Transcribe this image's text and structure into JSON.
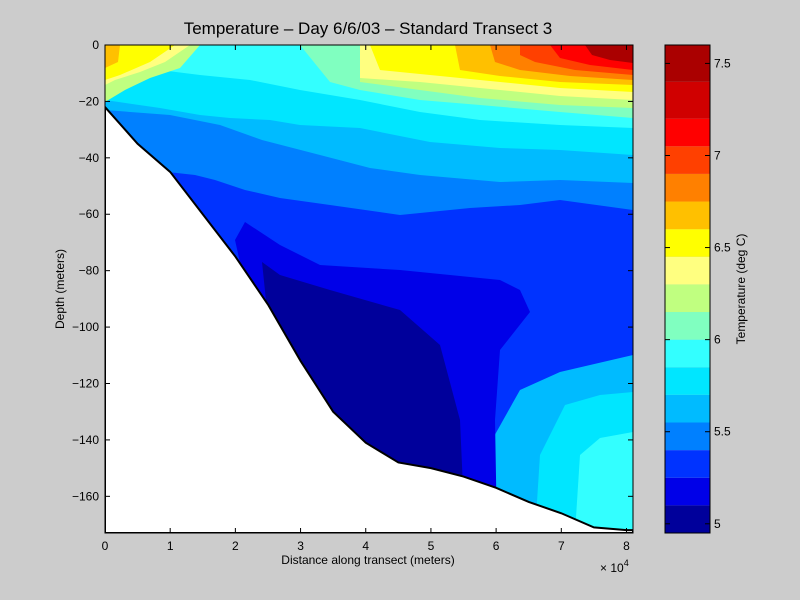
{
  "chart_data": {
    "type": "heatmap",
    "title": "Temperature – Day 6/6/03 – Standard Transect 3",
    "xlabel": "Distance along transect (meters)",
    "ylabel": "Depth (meters)",
    "x_multiplier_label": "× 10",
    "x_multiplier_exponent": "4",
    "xlim": [
      0,
      81000
    ],
    "ylim": [
      -173,
      0
    ],
    "x_ticks": [
      {
        "value": 0,
        "label": "0"
      },
      {
        "value": 10000,
        "label": "1"
      },
      {
        "value": 20000,
        "label": "2"
      },
      {
        "value": 30000,
        "label": "3"
      },
      {
        "value": 40000,
        "label": "4"
      },
      {
        "value": 50000,
        "label": "5"
      },
      {
        "value": 60000,
        "label": "6"
      },
      {
        "value": 70000,
        "label": "7"
      },
      {
        "value": 80000,
        "label": "8"
      }
    ],
    "y_ticks": [
      {
        "value": 0,
        "label": "0"
      },
      {
        "value": -20,
        "label": "−20"
      },
      {
        "value": -40,
        "label": "−40"
      },
      {
        "value": -60,
        "label": "−60"
      },
      {
        "value": -80,
        "label": "−80"
      },
      {
        "value": -100,
        "label": "−100"
      },
      {
        "value": -120,
        "label": "−120"
      },
      {
        "value": -140,
        "label": "−140"
      },
      {
        "value": -160,
        "label": "−160"
      }
    ],
    "colorbar": {
      "label": "Temperature (deg C)",
      "range": [
        4.95,
        7.6
      ],
      "levels": [
        {
          "value": 4.95,
          "color": "#00009b"
        },
        {
          "value": 5.1,
          "color": "#0000e8"
        },
        {
          "value": 5.25,
          "color": "#0033ff"
        },
        {
          "value": 5.4,
          "color": "#0080ff"
        },
        {
          "value": 5.55,
          "color": "#00bbff"
        },
        {
          "value": 5.7,
          "color": "#00e6ff"
        },
        {
          "value": 5.85,
          "color": "#33ffff"
        },
        {
          "value": 6.0,
          "color": "#80ffc0"
        },
        {
          "value": 6.15,
          "color": "#c0ff80"
        },
        {
          "value": 6.3,
          "color": "#ffff80"
        },
        {
          "value": 6.45,
          "color": "#ffff00"
        },
        {
          "value": 6.6,
          "color": "#ffc000"
        },
        {
          "value": 6.75,
          "color": "#ff8000"
        },
        {
          "value": 6.9,
          "color": "#ff4000"
        },
        {
          "value": 7.05,
          "color": "#ff0000"
        },
        {
          "value": 7.2,
          "color": "#d00000"
        },
        {
          "value": 7.4,
          "color": "#aa0000"
        }
      ],
      "ticks": [
        {
          "value": 5,
          "label": "5"
        },
        {
          "value": 5.5,
          "label": "5.5"
        },
        {
          "value": 6,
          "label": "6"
        },
        {
          "value": 6.5,
          "label": "6.5"
        },
        {
          "value": 7,
          "label": "7"
        },
        {
          "value": 7.5,
          "label": "7.5"
        }
      ]
    },
    "bottom_profile": [
      [
        0,
        -22
      ],
      [
        5000,
        -35
      ],
      [
        10000,
        -45
      ],
      [
        15000,
        -60
      ],
      [
        20000,
        -75
      ],
      [
        25000,
        -92
      ],
      [
        30000,
        -112
      ],
      [
        35000,
        -130
      ],
      [
        40000,
        -141
      ],
      [
        45000,
        -148
      ],
      [
        50000,
        -150
      ],
      [
        55000,
        -153
      ],
      [
        60000,
        -157
      ],
      [
        65000,
        -162
      ],
      [
        70000,
        -166
      ],
      [
        75000,
        -171
      ],
      [
        80000,
        -172
      ],
      [
        81000,
        -172
      ]
    ]
  }
}
